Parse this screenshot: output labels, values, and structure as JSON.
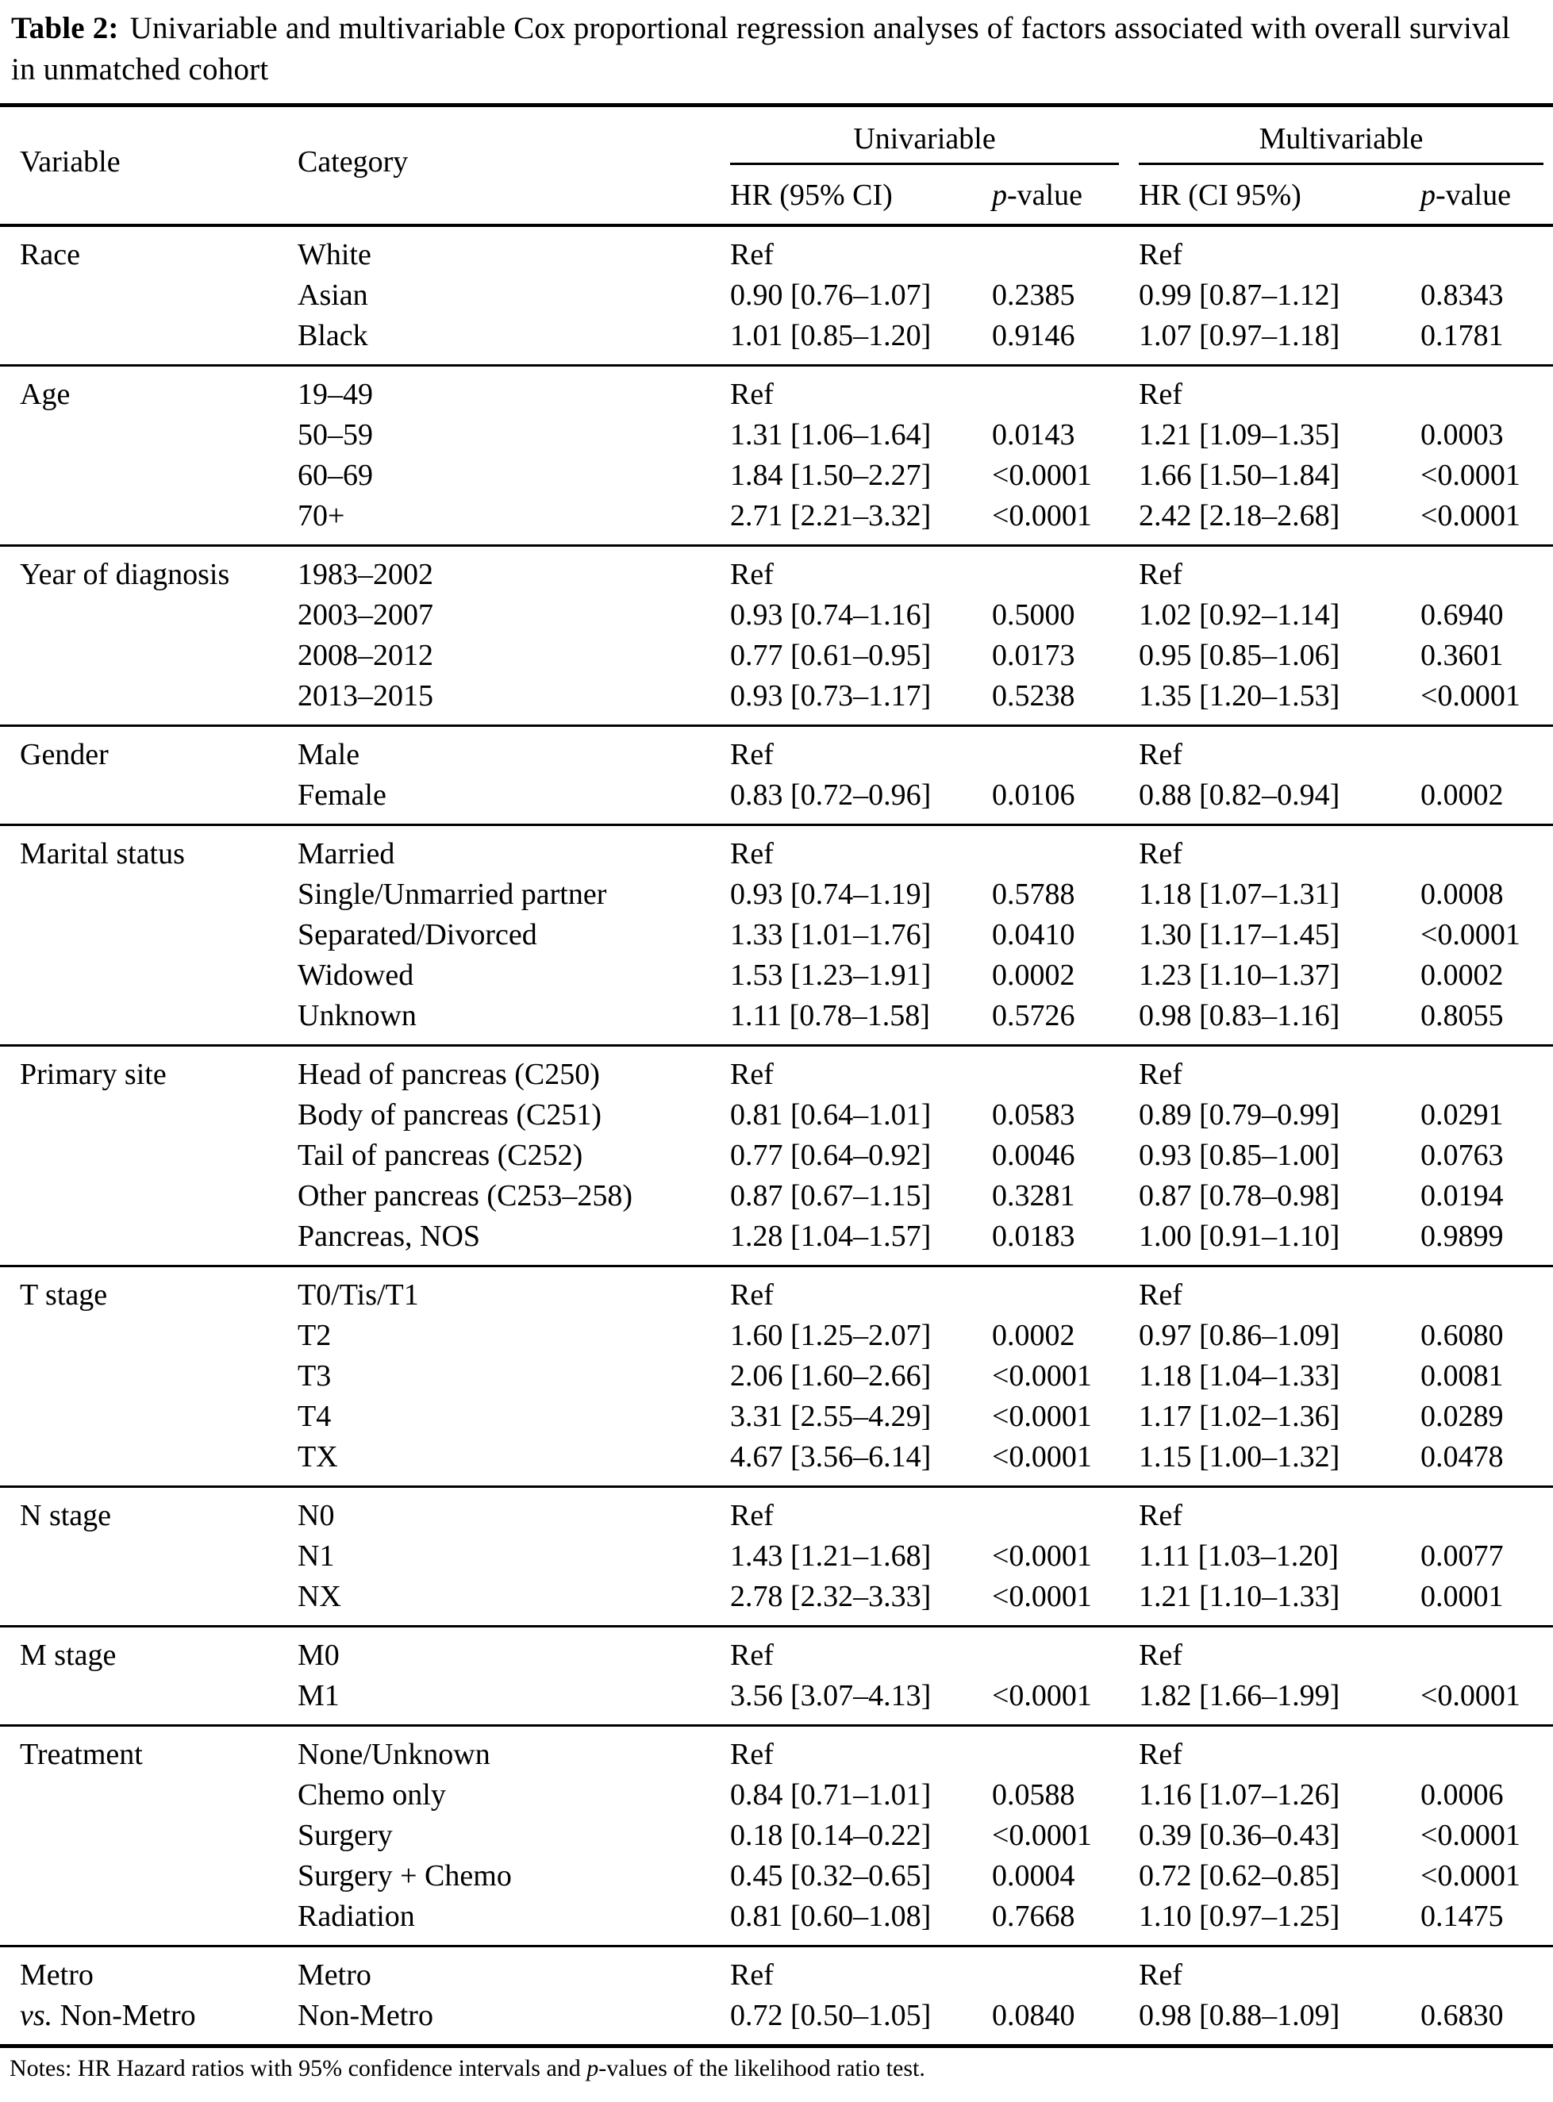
{
  "title": {
    "label": "Table 2:",
    "text": "Univariable and multivariable Cox proportional regression analyses of factors associated with overall survival in unmatched cohort"
  },
  "table": {
    "columns": {
      "variable": "Variable",
      "category": "Category",
      "univariable": "Univariable",
      "multivariable": "Multivariable",
      "uni_hr": "HR (95% CI)",
      "uni_p": {
        "italic": "p",
        "rest": "-value"
      },
      "multi_hr": "HR (CI 95%)",
      "multi_p": {
        "italic": "p",
        "rest": "-value"
      }
    },
    "groups": [
      {
        "rows": [
          {
            "variable": "Race",
            "category": "White",
            "uni_hr": "Ref",
            "uni_p": "",
            "multi_hr": "Ref",
            "multi_p": ""
          },
          {
            "variable": "",
            "category": "Asian",
            "uni_hr": "0.90 [0.76–1.07]",
            "uni_p": "0.2385",
            "multi_hr": "0.99 [0.87–1.12]",
            "multi_p": "0.8343"
          },
          {
            "variable": "",
            "category": "Black",
            "uni_hr": "1.01 [0.85–1.20]",
            "uni_p": "0.9146",
            "multi_hr": "1.07 [0.97–1.18]",
            "multi_p": "0.1781"
          }
        ]
      },
      {
        "rows": [
          {
            "variable": "Age",
            "category": "19–49",
            "uni_hr": "Ref",
            "uni_p": "",
            "multi_hr": "Ref",
            "multi_p": ""
          },
          {
            "variable": "",
            "category": "50–59",
            "uni_hr": "1.31 [1.06–1.64]",
            "uni_p": "0.0143",
            "multi_hr": "1.21 [1.09–1.35]",
            "multi_p": "0.0003"
          },
          {
            "variable": "",
            "category": "60–69",
            "uni_hr": "1.84 [1.50–2.27]",
            "uni_p": "<0.0001",
            "multi_hr": "1.66 [1.50–1.84]",
            "multi_p": "<0.0001"
          },
          {
            "variable": "",
            "category": "70+",
            "uni_hr": "2.71 [2.21–3.32]",
            "uni_p": "<0.0001",
            "multi_hr": "2.42 [2.18–2.68]",
            "multi_p": "<0.0001"
          }
        ]
      },
      {
        "rows": [
          {
            "variable": "Year of diagnosis",
            "category": "1983–2002",
            "uni_hr": "Ref",
            "uni_p": "",
            "multi_hr": "Ref",
            "multi_p": ""
          },
          {
            "variable": "",
            "category": "2003–2007",
            "uni_hr": "0.93 [0.74–1.16]",
            "uni_p": "0.5000",
            "multi_hr": "1.02 [0.92–1.14]",
            "multi_p": "0.6940"
          },
          {
            "variable": "",
            "category": "2008–2012",
            "uni_hr": "0.77 [0.61–0.95]",
            "uni_p": "0.0173",
            "multi_hr": "0.95 [0.85–1.06]",
            "multi_p": "0.3601"
          },
          {
            "variable": "",
            "category": "2013–2015",
            "uni_hr": "0.93 [0.73–1.17]",
            "uni_p": "0.5238",
            "multi_hr": "1.35 [1.20–1.53]",
            "multi_p": "<0.0001"
          }
        ]
      },
      {
        "rows": [
          {
            "variable": "Gender",
            "category": "Male",
            "uni_hr": "Ref",
            "uni_p": "",
            "multi_hr": "Ref",
            "multi_p": ""
          },
          {
            "variable": "",
            "category": "Female",
            "uni_hr": "0.83 [0.72–0.96]",
            "uni_p": "0.0106",
            "multi_hr": "0.88 [0.82–0.94]",
            "multi_p": "0.0002"
          }
        ]
      },
      {
        "rows": [
          {
            "variable": "Marital status",
            "category": "Married",
            "uni_hr": "Ref",
            "uni_p": "",
            "multi_hr": "Ref",
            "multi_p": ""
          },
          {
            "variable": "",
            "category": "Single/Unmarried partner",
            "uni_hr": "0.93 [0.74–1.19]",
            "uni_p": "0.5788",
            "multi_hr": "1.18 [1.07–1.31]",
            "multi_p": "0.0008"
          },
          {
            "variable": "",
            "category": "Separated/Divorced",
            "uni_hr": "1.33 [1.01–1.76]",
            "uni_p": "0.0410",
            "multi_hr": "1.30 [1.17–1.45]",
            "multi_p": "<0.0001"
          },
          {
            "variable": "",
            "category": "Widowed",
            "uni_hr": "1.53 [1.23–1.91]",
            "uni_p": "0.0002",
            "multi_hr": "1.23 [1.10–1.37]",
            "multi_p": "0.0002"
          },
          {
            "variable": "",
            "category": "Unknown",
            "uni_hr": "1.11 [0.78–1.58]",
            "uni_p": "0.5726",
            "multi_hr": "0.98 [0.83–1.16]",
            "multi_p": "0.8055"
          }
        ]
      },
      {
        "rows": [
          {
            "variable": "Primary site",
            "category": "Head of pancreas (C250)",
            "uni_hr": "Ref",
            "uni_p": "",
            "multi_hr": "Ref",
            "multi_p": ""
          },
          {
            "variable": "",
            "category": "Body of pancreas (C251)",
            "uni_hr": "0.81 [0.64–1.01]",
            "uni_p": "0.0583",
            "multi_hr": "0.89 [0.79–0.99]",
            "multi_p": "0.0291"
          },
          {
            "variable": "",
            "category": "Tail of pancreas (C252)",
            "uni_hr": "0.77 [0.64–0.92]",
            "uni_p": "0.0046",
            "multi_hr": "0.93 [0.85–1.00]",
            "multi_p": "0.0763"
          },
          {
            "variable": "",
            "category": "Other pancreas (C253–258)",
            "uni_hr": "0.87 [0.67–1.15]",
            "uni_p": "0.3281",
            "multi_hr": "0.87 [0.78–0.98]",
            "multi_p": "0.0194"
          },
          {
            "variable": "",
            "category": "Pancreas, NOS",
            "uni_hr": "1.28 [1.04–1.57]",
            "uni_p": "0.0183",
            "multi_hr": "1.00 [0.91–1.10]",
            "multi_p": "0.9899"
          }
        ]
      },
      {
        "rows": [
          {
            "variable": "T stage",
            "category": "T0/Tis/T1",
            "uni_hr": "Ref",
            "uni_p": "",
            "multi_hr": "Ref",
            "multi_p": ""
          },
          {
            "variable": "",
            "category": "T2",
            "uni_hr": "1.60 [1.25–2.07]",
            "uni_p": "0.0002",
            "multi_hr": "0.97 [0.86–1.09]",
            "multi_p": "0.6080"
          },
          {
            "variable": "",
            "category": "T3",
            "uni_hr": "2.06 [1.60–2.66]",
            "uni_p": "<0.0001",
            "multi_hr": "1.18 [1.04–1.33]",
            "multi_p": "0.0081"
          },
          {
            "variable": "",
            "category": "T4",
            "uni_hr": "3.31 [2.55–4.29]",
            "uni_p": "<0.0001",
            "multi_hr": "1.17 [1.02–1.36]",
            "multi_p": "0.0289"
          },
          {
            "variable": "",
            "category": "TX",
            "uni_hr": "4.67 [3.56–6.14]",
            "uni_p": "<0.0001",
            "multi_hr": "1.15 [1.00–1.32]",
            "multi_p": "0.0478"
          }
        ]
      },
      {
        "rows": [
          {
            "variable": "N stage",
            "category": "N0",
            "uni_hr": "Ref",
            "uni_p": "",
            "multi_hr": "Ref",
            "multi_p": ""
          },
          {
            "variable": "",
            "category": "N1",
            "uni_hr": "1.43 [1.21–1.68]",
            "uni_p": "<0.0001",
            "multi_hr": "1.11 [1.03–1.20]",
            "multi_p": "0.0077"
          },
          {
            "variable": "",
            "category": "NX",
            "uni_hr": "2.78 [2.32–3.33]",
            "uni_p": "<0.0001",
            "multi_hr": "1.21 [1.10–1.33]",
            "multi_p": "0.0001"
          }
        ]
      },
      {
        "rows": [
          {
            "variable": "M stage",
            "category": "M0",
            "uni_hr": "Ref",
            "uni_p": "",
            "multi_hr": "Ref",
            "multi_p": ""
          },
          {
            "variable": "",
            "category": "M1",
            "uni_hr": "3.56 [3.07–4.13]",
            "uni_p": "<0.0001",
            "multi_hr": "1.82 [1.66–1.99]",
            "multi_p": "<0.0001"
          }
        ]
      },
      {
        "rows": [
          {
            "variable": "Treatment",
            "category": "None/Unknown",
            "uni_hr": "Ref",
            "uni_p": "",
            "multi_hr": "Ref",
            "multi_p": ""
          },
          {
            "variable": "",
            "category": "Chemo only",
            "uni_hr": "0.84 [0.71–1.01]",
            "uni_p": "0.0588",
            "multi_hr": "1.16 [1.07–1.26]",
            "multi_p": "0.0006"
          },
          {
            "variable": "",
            "category": "Surgery",
            "uni_hr": "0.18 [0.14–0.22]",
            "uni_p": "<0.0001",
            "multi_hr": "0.39 [0.36–0.43]",
            "multi_p": "<0.0001"
          },
          {
            "variable": "",
            "category": "Surgery + Chemo",
            "uni_hr": "0.45 [0.32–0.65]",
            "uni_p": "0.0004",
            "multi_hr": "0.72 [0.62–0.85]",
            "multi_p": "<0.0001"
          },
          {
            "variable": "",
            "category": "Radiation",
            "uni_hr": "0.81 [0.60–1.08]",
            "uni_p": "0.7668",
            "multi_hr": "1.10 [0.97–1.25]",
            "multi_p": "0.1475"
          }
        ]
      },
      {
        "rows": [
          {
            "variable": "Metro",
            "category": "Metro",
            "uni_hr": "Ref",
            "uni_p": "",
            "multi_hr": "Ref",
            "multi_p": ""
          },
          {
            "variable": "vs. Non-Metro",
            "category": "Non-Metro",
            "uni_hr": "0.72 [0.50–1.05]",
            "uni_p": "0.0840",
            "multi_hr": "0.98 [0.88–1.09]",
            "multi_p": "0.6830"
          }
        ]
      }
    ]
  },
  "notes": {
    "pre": "Notes: HR Hazard ratios with 95% confidence intervals and ",
    "italic": "p",
    "post": "-values of the likelihood ratio test."
  }
}
